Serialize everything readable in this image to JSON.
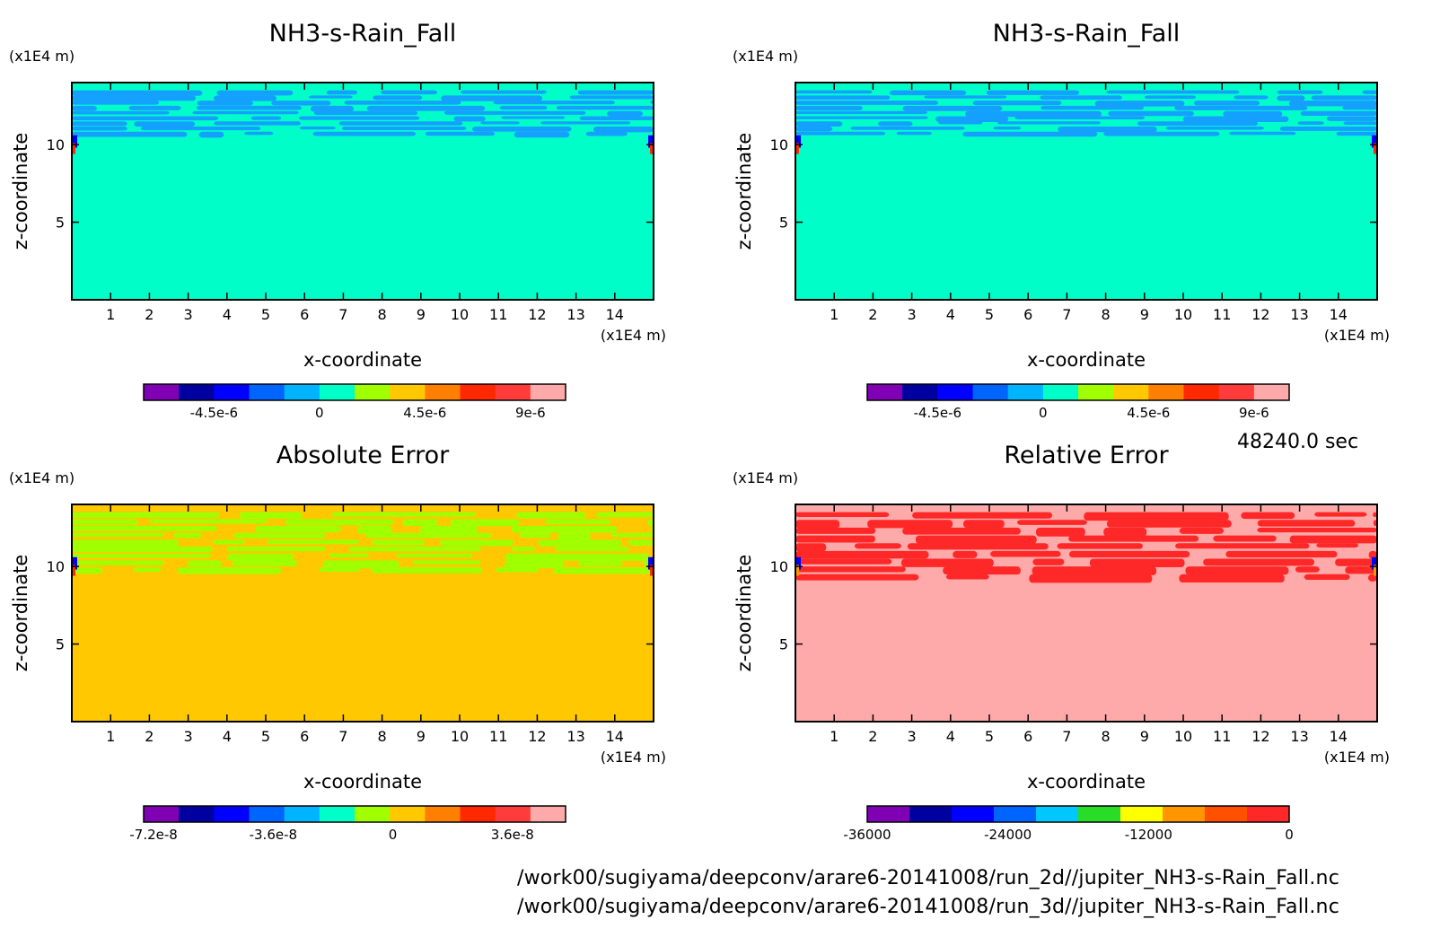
{
  "time_label": "48240.0 sec",
  "footer": {
    "line1": "/work00/sugiyama/deepconv/arare6-20141008/run_2d//jupiter_NH3-s-Rain_Fall.nc",
    "line2": "/work00/sugiyama/deepconv/arare6-20141008/run_3d//jupiter_NH3-s-Rain_Fall.nc"
  },
  "chart_data": [
    {
      "type": "heatmap",
      "title": "NH3-s-Rain_Fall",
      "xlabel": "x-coordinate",
      "ylabel": "z-coordinate",
      "x_unit": "(x1E4 m)",
      "y_unit": "(x1E4 m)",
      "xlim": [
        0,
        15
      ],
      "ylim": [
        0,
        14
      ],
      "x_ticks": [
        1,
        2,
        3,
        4,
        5,
        6,
        7,
        8,
        9,
        10,
        11,
        12,
        13,
        14
      ],
      "y_ticks": [
        5,
        10
      ],
      "background_color": "#00ffc8",
      "feature_color": "#14a0ff",
      "feature_band_z": [
        10.5,
        13.5
      ],
      "colorbar": {
        "colors": [
          "#8000b4",
          "#0000a0",
          "#0000ff",
          "#0064ff",
          "#00b4ff",
          "#00ffc8",
          "#a0ff00",
          "#ffc800",
          "#ff8000",
          "#ff2800",
          "#ff3c3c",
          "#ffaaaa"
        ],
        "tick_labels": [
          "-4.5e-6",
          "0",
          "4.5e-6",
          "9e-6"
        ],
        "tick_values": [
          -4.5e-06,
          0,
          4.5e-06,
          9e-06
        ],
        "range": [
          -7.5e-06,
          1.05e-05
        ]
      }
    },
    {
      "type": "heatmap",
      "title": "NH3-s-Rain_Fall",
      "xlabel": "x-coordinate",
      "ylabel": "z-coordinate",
      "x_unit": "(x1E4 m)",
      "y_unit": "(x1E4 m)",
      "xlim": [
        0,
        15
      ],
      "ylim": [
        0,
        14
      ],
      "x_ticks": [
        1,
        2,
        3,
        4,
        5,
        6,
        7,
        8,
        9,
        10,
        11,
        12,
        13,
        14
      ],
      "y_ticks": [
        5,
        10
      ],
      "background_color": "#00ffc8",
      "feature_color": "#14a0ff",
      "feature_band_z": [
        10.5,
        13.5
      ],
      "colorbar": {
        "colors": [
          "#8000b4",
          "#0000a0",
          "#0000ff",
          "#0064ff",
          "#00b4ff",
          "#00ffc8",
          "#a0ff00",
          "#ffc800",
          "#ff8000",
          "#ff2800",
          "#ff3c3c",
          "#ffaaaa"
        ],
        "tick_labels": [
          "-4.5e-6",
          "0",
          "4.5e-6",
          "9e-6"
        ],
        "tick_values": [
          -4.5e-06,
          0,
          4.5e-06,
          9e-06
        ],
        "range": [
          -7.5e-06,
          1.05e-05
        ]
      }
    },
    {
      "type": "heatmap",
      "title": "Absolute Error",
      "xlabel": "x-coordinate",
      "ylabel": "z-coordinate",
      "x_unit": "(x1E4 m)",
      "y_unit": "(x1E4 m)",
      "xlim": [
        0,
        15
      ],
      "ylim": [
        0,
        14
      ],
      "x_ticks": [
        1,
        2,
        3,
        4,
        5,
        6,
        7,
        8,
        9,
        10,
        11,
        12,
        13,
        14
      ],
      "y_ticks": [
        5,
        10
      ],
      "background_color": "#ffc800",
      "feature_color": "#a0ff00",
      "feature_band_z": [
        9.5,
        13.5
      ],
      "colorbar": {
        "colors": [
          "#8000b4",
          "#0000a0",
          "#0000ff",
          "#0064ff",
          "#00b4ff",
          "#00ffc8",
          "#a0ff00",
          "#ffc800",
          "#ff8000",
          "#ff2800",
          "#ff3c3c",
          "#ffaaaa"
        ],
        "tick_labels": [
          "-7.2e-8",
          "-3.6e-8",
          "0",
          "3.6e-8"
        ],
        "tick_values": [
          -7.2e-08,
          -3.6e-08,
          0,
          3.6e-08
        ],
        "range": [
          -7.5e-08,
          5.2e-08
        ]
      }
    },
    {
      "type": "heatmap",
      "title": "Relative Error",
      "xlabel": "x-coordinate",
      "ylabel": "z-coordinate",
      "x_unit": "(x1E4 m)",
      "y_unit": "(x1E4 m)",
      "xlim": [
        0,
        15
      ],
      "ylim": [
        0,
        14
      ],
      "x_ticks": [
        1,
        2,
        3,
        4,
        5,
        6,
        7,
        8,
        9,
        10,
        11,
        12,
        13,
        14
      ],
      "y_ticks": [
        5,
        10
      ],
      "background_color": "#ffaaaa",
      "feature_color": "#ff2828",
      "feature_band_z": [
        9.0,
        13.5
      ],
      "colorbar": {
        "colors": [
          "#8000b4",
          "#0000a0",
          "#0000ff",
          "#0064ff",
          "#00c8ff",
          "#28dc28",
          "#ffff00",
          "#ff9600",
          "#ff5000",
          "#ff2828"
        ],
        "tick_labels": [
          "-36000",
          "-24000",
          "-12000",
          "0"
        ],
        "tick_values": [
          -36000,
          -24000,
          -12000,
          0
        ],
        "range": [
          -36000,
          0
        ]
      }
    }
  ]
}
